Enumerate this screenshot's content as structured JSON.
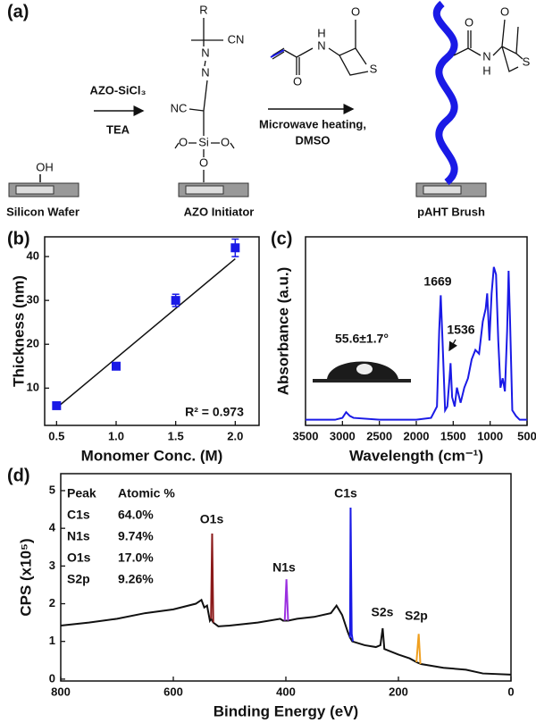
{
  "scheme": {
    "label": "(a)",
    "reagent1": "AZO-SiCl₃",
    "base": "TEA",
    "conditions": [
      "Microwave heating,",
      "DMSO"
    ],
    "stages": [
      "Silicon Wafer",
      "AZO Initiator",
      "pAHT Brush"
    ],
    "atoms": [
      "OH",
      "R",
      "CN",
      "N",
      "N",
      "NC",
      "O",
      "Si",
      "O",
      "O",
      "O",
      "N",
      "H",
      "O",
      "S",
      "O",
      "N",
      "H",
      "O",
      "S"
    ]
  },
  "chart_data": [
    {
      "type": "scatter",
      "label": "(b)",
      "xlabel": "Monomer Conc. (M)",
      "ylabel": "Thickness (nm)",
      "x": [
        0.5,
        1.0,
        1.5,
        2.0
      ],
      "values": [
        6,
        15,
        30,
        42
      ],
      "errors": [
        0.6,
        0.6,
        1.4,
        2.0
      ],
      "color": "#1a1ae6",
      "fit": {
        "x": [
          0.5,
          2.0
        ],
        "values": [
          5.5,
          39.5
        ]
      },
      "xlim": [
        0.4,
        2.2
      ],
      "xticks": [
        0.5,
        {
          "value": 1.0,
          "label": "1.0"
        },
        1.5,
        {
          "value": 2.0,
          "label": "2.0"
        }
      ],
      "ylim": [
        1.5,
        44.5
      ],
      "yticks": [
        10,
        20,
        30,
        40
      ],
      "annotations": [
        "R² = 0.973"
      ]
    },
    {
      "type": "line",
      "label": "(c)",
      "xlabel": "Wavelength (cm⁻¹)",
      "ylabel": "Absorbance (a.u.)",
      "xlim": [
        3500,
        500
      ],
      "xticks": [
        3500,
        3000,
        2500,
        2000,
        1500,
        1000,
        500
      ],
      "ylim": [
        0,
        1
      ],
      "series": [
        {
          "color": "#1a1ae6",
          "x": [
            3500,
            3100,
            3000,
            2950,
            2900,
            2850,
            2500,
            2000,
            1800,
            1720,
            1690,
            1669,
            1645,
            1610,
            1580,
            1550,
            1536,
            1515,
            1480,
            1450,
            1400,
            1350,
            1300,
            1250,
            1200,
            1150,
            1100,
            1060,
            1040,
            1010,
            980,
            950,
            920,
            890,
            860,
            830,
            800,
            770,
            750,
            730,
            700,
            650,
            600,
            500
          ],
          "values": [
            0.03,
            0.03,
            0.04,
            0.07,
            0.05,
            0.04,
            0.03,
            0.03,
            0.04,
            0.1,
            0.5,
            0.69,
            0.45,
            0.08,
            0.1,
            0.25,
            0.33,
            0.15,
            0.1,
            0.2,
            0.12,
            0.2,
            0.25,
            0.35,
            0.4,
            0.38,
            0.55,
            0.62,
            0.7,
            0.45,
            0.7,
            0.84,
            0.8,
            0.45,
            0.2,
            0.25,
            0.18,
            0.5,
            0.82,
            0.55,
            0.08,
            0.05,
            0.03,
            0.03
          ]
        }
      ],
      "annotations": [
        "1669",
        "1536",
        "55.6±1.7°"
      ]
    },
    {
      "type": "line",
      "label": "(d)",
      "xlabel": "Binding Energy (eV)",
      "ylabel": "CPS (x10⁵)",
      "xlim": [
        800,
        0
      ],
      "xticks": [
        800,
        600,
        400,
        200,
        0
      ],
      "ylim": [
        -0.05,
        5.45
      ],
      "yticks": [
        0,
        1,
        2,
        3,
        4,
        5
      ],
      "series": [
        {
          "color": "#111111",
          "x": [
            800,
            750,
            700,
            650,
            600,
            560,
            550,
            545,
            540,
            535,
            533,
            529,
            520,
            500,
            450,
            410,
            405,
            402,
            396,
            380,
            350,
            320,
            310,
            300,
            290,
            286,
            282,
            260,
            240,
            232,
            228,
            225,
            200,
            180,
            168,
            160,
            120,
            80,
            50,
            0
          ],
          "values": [
            1.42,
            1.5,
            1.6,
            1.75,
            1.85,
            2.0,
            2.1,
            1.9,
            1.95,
            1.55,
            1.6,
            1.5,
            1.4,
            1.42,
            1.5,
            1.6,
            1.55,
            1.55,
            1.55,
            1.6,
            1.65,
            1.75,
            1.95,
            1.7,
            1.25,
            1.1,
            1.0,
            0.9,
            0.85,
            0.9,
            1.35,
            0.8,
            0.65,
            0.55,
            0.45,
            0.4,
            0.3,
            0.25,
            0.15,
            0.12
          ]
        },
        {
          "color": "#8b1a1a",
          "x": [
            533,
            531,
            529
          ],
          "values": [
            1.6,
            3.86,
            1.5
          ]
        },
        {
          "color": "#9b30e0",
          "x": [
            402,
            399,
            396
          ],
          "values": [
            1.55,
            2.65,
            1.55
          ]
        },
        {
          "color": "#1a1ae6",
          "x": [
            286,
            285,
            283,
            281
          ],
          "values": [
            1.1,
            4.55,
            1.2,
            1.0
          ]
        },
        {
          "color": "#f0a020",
          "x": [
            168,
            164,
            161
          ],
          "values": [
            0.45,
            1.2,
            0.4
          ]
        }
      ],
      "annotations": [
        {
          "text": "O1s",
          "color": "#8b1a1a"
        },
        {
          "text": "N1s",
          "color": "#9b30e0"
        },
        {
          "text": "C1s",
          "color": "#1a1ae6"
        },
        {
          "text": "S2s",
          "color": "#111111"
        },
        {
          "text": "S2p",
          "color": "#f0a020"
        }
      ],
      "table": {
        "columns": [
          "Peak",
          "Atomic %"
        ],
        "rows": [
          [
            "C1s",
            "64.0%"
          ],
          [
            "N1s",
            "9.74%"
          ],
          [
            "O1s",
            "17.0%"
          ],
          [
            "S2p",
            "9.26%"
          ]
        ],
        "row_colors": [
          "#1a1ae6",
          "#9b30e0",
          "#8b1a1a",
          "#f0a020"
        ]
      }
    }
  ]
}
